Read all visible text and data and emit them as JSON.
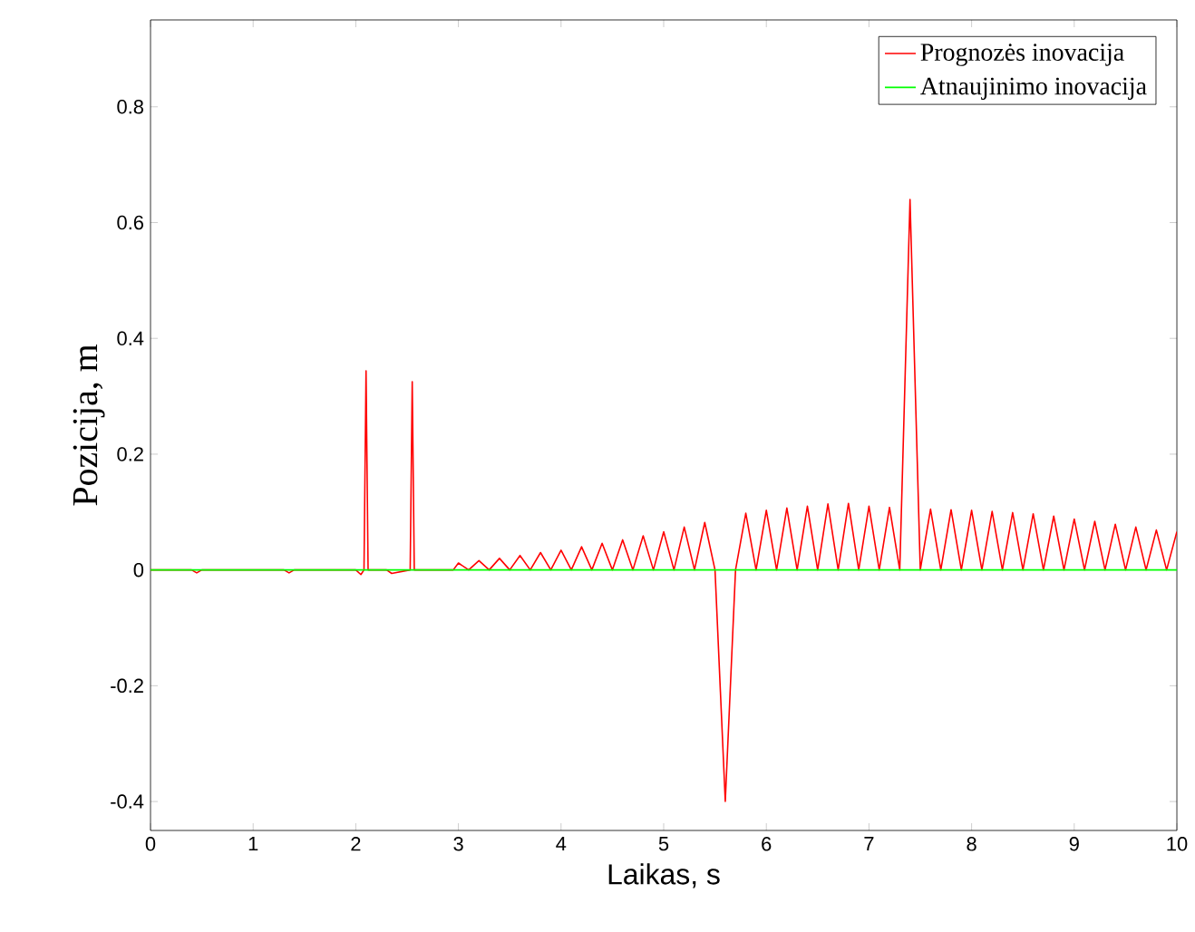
{
  "chart_data": {
    "type": "line",
    "xlabel": "Laikas, s",
    "ylabel": "Pozicija, m",
    "xlim": [
      0,
      10
    ],
    "ylim": [
      -0.45,
      0.95
    ],
    "xticks": [
      0,
      1,
      2,
      3,
      4,
      5,
      6,
      7,
      8,
      9,
      10
    ],
    "yticks": [
      -0.4,
      -0.2,
      0,
      0.2,
      0.4,
      0.6,
      0.8
    ],
    "legend": "top right",
    "marker": "none",
    "line_style": "solid",
    "grid": false,
    "series": [
      {
        "name": "Prognozės inovacija",
        "color": "#ff0000",
        "x": [
          0,
          0.4,
          0.45,
          0.5,
          1.3,
          1.35,
          1.4,
          2.0,
          2.05,
          2.08,
          2.1,
          2.12,
          2.3,
          2.35,
          2.53,
          2.55,
          2.57,
          2.95,
          3.0,
          3.1,
          3.2,
          3.3,
          3.4,
          3.5,
          3.6,
          3.7,
          3.8,
          3.9,
          4.0,
          4.1,
          4.2,
          4.3,
          4.4,
          4.5,
          4.6,
          4.7,
          4.8,
          4.9,
          5.0,
          5.1,
          5.2,
          5.3,
          5.4,
          5.5,
          5.6,
          5.7,
          5.8,
          5.9,
          6.0,
          6.1,
          6.2,
          6.3,
          6.4,
          6.5,
          6.6,
          6.7,
          6.8,
          6.9,
          7.0,
          7.1,
          7.2,
          7.3,
          7.4,
          7.5,
          7.6,
          7.7,
          7.8,
          7.9,
          8.0,
          8.1,
          8.2,
          8.3,
          8.4,
          8.5,
          8.6,
          8.7,
          8.8,
          8.9,
          9.0,
          9.1,
          9.2,
          9.3,
          9.4,
          9.5,
          9.6,
          9.7,
          9.8,
          9.9,
          10.0
        ],
        "values": [
          0,
          0,
          -0.005,
          0,
          0,
          -0.005,
          0,
          0,
          -0.008,
          0,
          0.344,
          0,
          0,
          -0.006,
          0,
          0.325,
          0,
          0,
          0.012,
          0,
          0.016,
          0,
          0.02,
          0,
          0.025,
          0,
          0.03,
          0,
          0.034,
          0,
          0.04,
          0,
          0.046,
          0,
          0.052,
          0,
          0.059,
          0,
          0.066,
          0,
          0.074,
          0,
          0.082,
          0,
          -0.4,
          0,
          0.098,
          0,
          0.103,
          0,
          0.107,
          0,
          0.11,
          0,
          0.114,
          0,
          0.115,
          0,
          0.11,
          0,
          0.108,
          0,
          0.64,
          0,
          0.105,
          0,
          0.104,
          0,
          0.103,
          0,
          0.101,
          0,
          0.099,
          0,
          0.097,
          0,
          0.093,
          0,
          0.088,
          0,
          0.084,
          0,
          0.079,
          0,
          0.074,
          0,
          0.069,
          0,
          0.066
        ]
      },
      {
        "name": "Atnaujinimo inovacija",
        "color": "#00ff00",
        "x": [
          0,
          10
        ],
        "values": [
          0,
          0
        ]
      }
    ]
  }
}
